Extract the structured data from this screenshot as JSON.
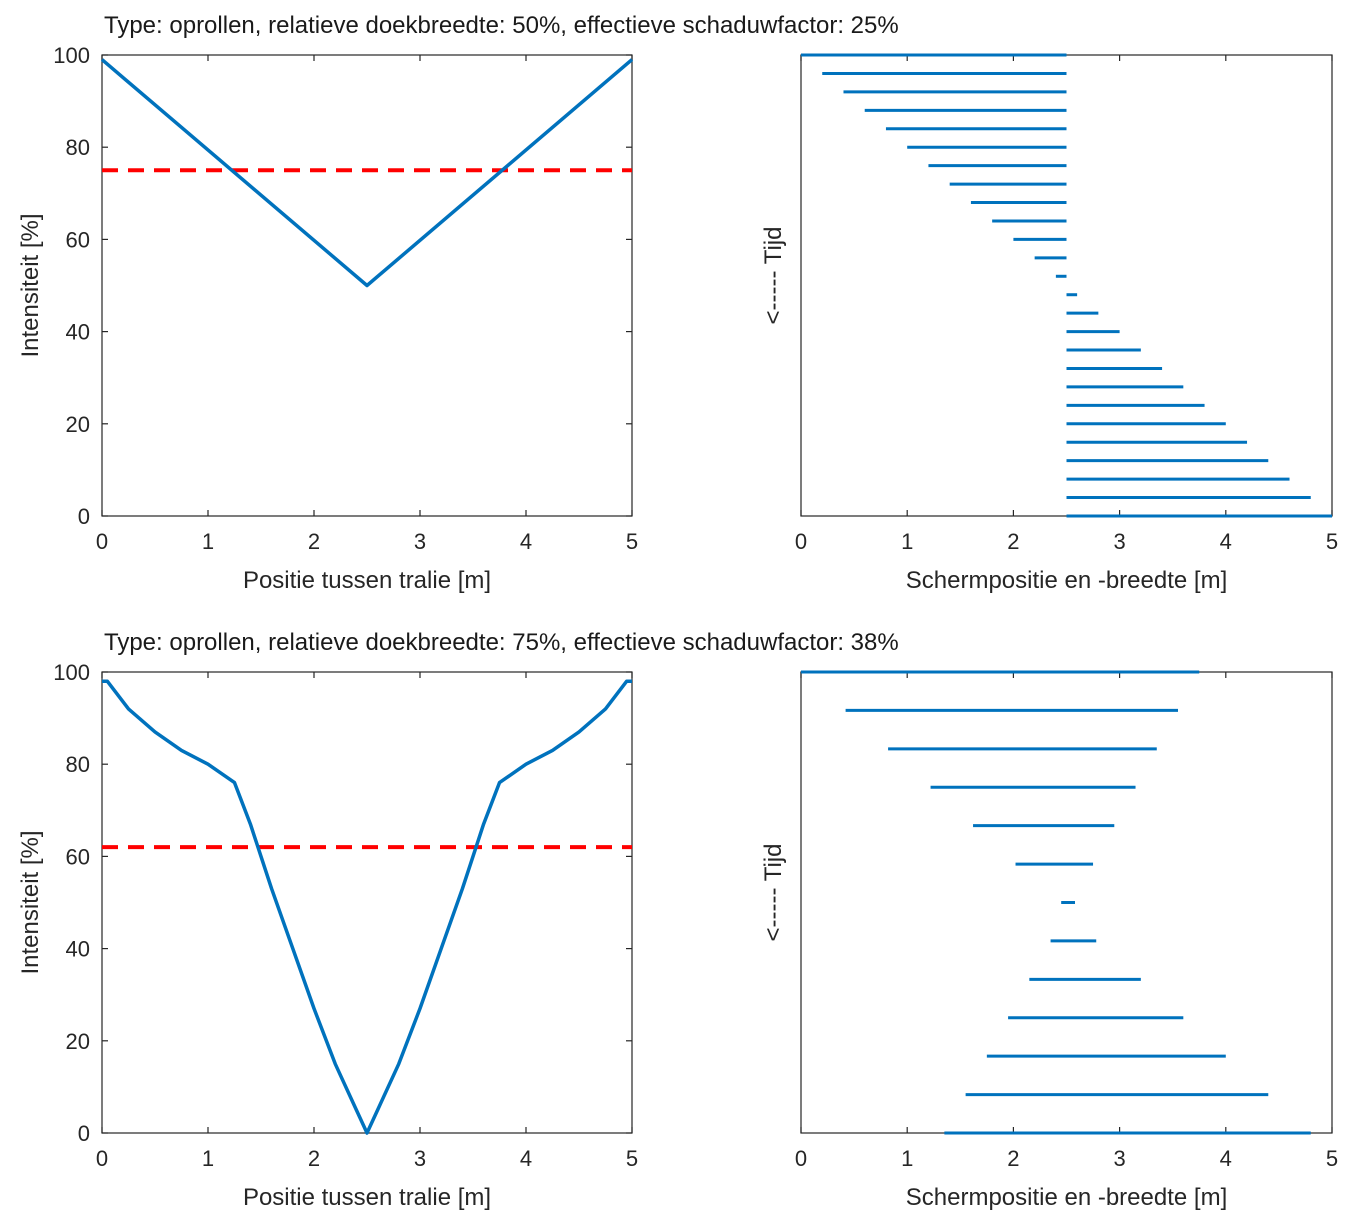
{
  "figure": {
    "row1_title": "Type: oprollen,  relatieve doekbreedte: 50%,  effectieve schaduwfactor: 25%",
    "row2_title": "Type: oprollen,  relatieve doekbreedte: 75%,  effectieve schaduwfactor: 38%"
  },
  "colors": {
    "line": "#0072BD",
    "threshold": "#FF0000",
    "axis": "#262626"
  },
  "chart_data": [
    {
      "type": "line",
      "xlabel": "Positie tussen tralie [m]",
      "ylabel": "Intensiteit [%]",
      "xlim": [
        0,
        5
      ],
      "ylim": [
        0,
        100
      ],
      "xticks": [
        0,
        1,
        2,
        3,
        4,
        5
      ],
      "yticks": [
        0,
        20,
        40,
        60,
        80,
        100
      ],
      "grid": false,
      "series": [
        {
          "x": [
            0,
            2.5,
            5
          ],
          "values": [
            99,
            50,
            99
          ]
        }
      ],
      "threshold": 75
    },
    {
      "type": "bar",
      "orientation": "horizontal",
      "xlabel": "Schermpositie en -breedte [m]",
      "ylabel": "<----- Tijd",
      "xlim": [
        0,
        5
      ],
      "xticks": [
        0,
        1,
        2,
        3,
        4,
        5
      ],
      "yticks_visible": false,
      "segments": [
        [
          0,
          2.5
        ],
        [
          0.2,
          2.5
        ],
        [
          0.4,
          2.5
        ],
        [
          0.6,
          2.5
        ],
        [
          0.8,
          2.5
        ],
        [
          1.0,
          2.5
        ],
        [
          1.2,
          2.5
        ],
        [
          1.4,
          2.5
        ],
        [
          1.6,
          2.5
        ],
        [
          1.8,
          2.5
        ],
        [
          2.0,
          2.5
        ],
        [
          2.2,
          2.5
        ],
        [
          2.4,
          2.5
        ],
        [
          2.5,
          2.6
        ],
        [
          2.5,
          2.8
        ],
        [
          2.5,
          3.0
        ],
        [
          2.5,
          3.2
        ],
        [
          2.5,
          3.4
        ],
        [
          2.5,
          3.6
        ],
        [
          2.5,
          3.8
        ],
        [
          2.5,
          4.0
        ],
        [
          2.5,
          4.2
        ],
        [
          2.5,
          4.4
        ],
        [
          2.5,
          4.6
        ],
        [
          2.5,
          4.8
        ],
        [
          2.5,
          5.0
        ]
      ]
    },
    {
      "type": "line",
      "xlabel": "Positie tussen tralie [m]",
      "ylabel": "Intensiteit [%]",
      "xlim": [
        0,
        5
      ],
      "ylim": [
        0,
        100
      ],
      "xticks": [
        0,
        1,
        2,
        3,
        4,
        5
      ],
      "yticks": [
        0,
        20,
        40,
        60,
        80,
        100
      ],
      "grid": false,
      "series": [
        {
          "x": [
            0,
            0.05,
            0.25,
            0.5,
            0.75,
            1.0,
            1.25,
            1.4,
            1.5,
            1.6,
            1.8,
            2.0,
            2.2,
            2.4,
            2.5,
            2.6,
            2.8,
            3.0,
            3.2,
            3.4,
            3.5,
            3.6,
            3.75,
            4.0,
            4.25,
            4.5,
            4.75,
            4.95,
            5.0
          ],
          "values": [
            98,
            98,
            92,
            87,
            83,
            80,
            76,
            67,
            60,
            53,
            40,
            27,
            15,
            5,
            0,
            5,
            15,
            27,
            40,
            53,
            60,
            67,
            76,
            80,
            83,
            87,
            92,
            98,
            98
          ]
        }
      ],
      "threshold": 62
    },
    {
      "type": "bar",
      "orientation": "horizontal",
      "xlabel": "Schermpositie en -breedte [m]",
      "ylabel": "<----- Tijd",
      "xlim": [
        0,
        5
      ],
      "xticks": [
        0,
        1,
        2,
        3,
        4,
        5
      ],
      "yticks_visible": false,
      "segments": [
        [
          0,
          3.75
        ],
        [
          0.42,
          3.55
        ],
        [
          0.82,
          3.35
        ],
        [
          1.22,
          3.15
        ],
        [
          1.62,
          2.95
        ],
        [
          2.02,
          2.75
        ],
        [
          2.45,
          2.58
        ],
        [
          2.35,
          2.78
        ],
        [
          2.15,
          3.2
        ],
        [
          1.95,
          3.6
        ],
        [
          1.75,
          4.0
        ],
        [
          1.55,
          4.4
        ],
        [
          1.35,
          4.8
        ]
      ]
    }
  ]
}
